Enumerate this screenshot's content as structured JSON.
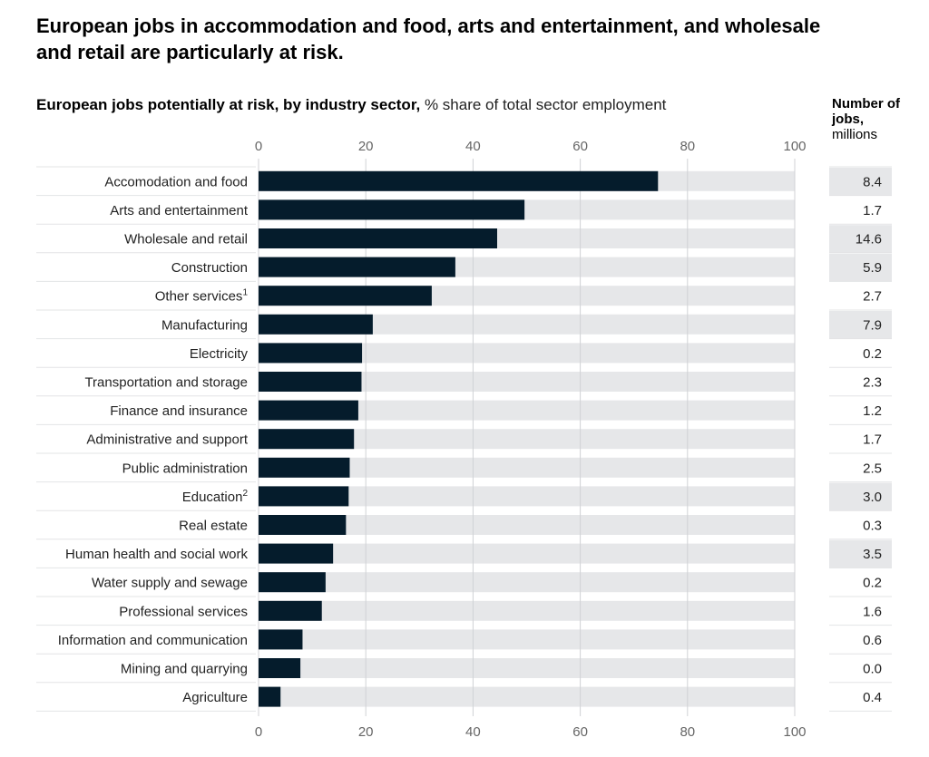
{
  "title": "European jobs in accommodation and food, arts and entertainment, and wholesale and retail are particularly at risk.",
  "chart_data": {
    "type": "bar",
    "orientation": "horizontal",
    "title": "European jobs potentially at risk, by industry sector,",
    "subtitle": "% share of total sector employment",
    "xlim": [
      0,
      100
    ],
    "xticks": [
      "0",
      "20",
      "40",
      "60",
      "80",
      "100"
    ],
    "grid": true,
    "bar_color": "#051c2c",
    "track_color": "#e6e7e9",
    "categories": [
      "Accomodation and food",
      "Arts and entertainment",
      "Wholesale and retail",
      "Construction",
      "Other services",
      "Manufacturing",
      "Electricity",
      "Transportation and storage",
      "Finance and insurance",
      "Administrative and support",
      "Public administration",
      "Education",
      "Real estate",
      "Human health and social work",
      "Water supply and sewage",
      "Professional services",
      "Information and communication",
      "Mining and quarrying",
      "Agriculture"
    ],
    "superscripts": [
      "",
      "",
      "",
      "",
      "1",
      "",
      "",
      "",
      "",
      "",
      "",
      "2",
      "",
      "",
      "",
      "",
      "",
      "",
      ""
    ],
    "values": [
      74.5,
      49.6,
      44.5,
      36.7,
      32.3,
      21.3,
      19.3,
      19.2,
      18.6,
      17.8,
      17.0,
      16.8,
      16.3,
      13.9,
      12.5,
      11.8,
      8.2,
      7.8,
      4.1
    ],
    "jobs_column": {
      "header_bold": "Number of jobs,",
      "header_unit": "millions",
      "values": [
        "8.4",
        "1.7",
        "14.6",
        "5.9",
        "2.7",
        "7.9",
        "0.2",
        "2.3",
        "1.2",
        "1.7",
        "2.5",
        "3.0",
        "0.3",
        "3.5",
        "0.2",
        "1.6",
        "0.6",
        "0.0",
        "0.4"
      ],
      "highlighted": [
        true,
        false,
        true,
        true,
        false,
        true,
        false,
        false,
        false,
        false,
        false,
        true,
        false,
        true,
        false,
        false,
        false,
        false,
        false
      ],
      "highlight_color": "#e6e7e9"
    }
  }
}
